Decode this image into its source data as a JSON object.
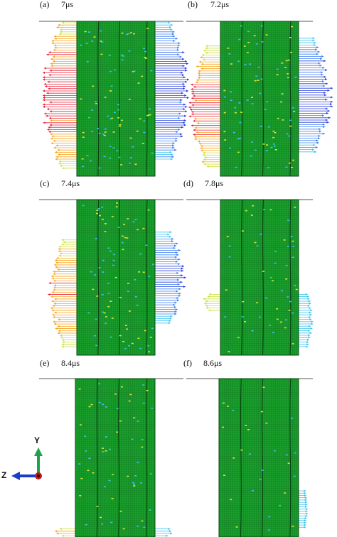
{
  "panels": [
    {
      "id": "a",
      "label": "(a)",
      "time": "7μs",
      "left_spread": 1.0,
      "right_spread": 1.0,
      "left_band": [
        0.0,
        0.95
      ],
      "right_band": [
        0.0,
        0.9
      ]
    },
    {
      "id": "b",
      "label": "(b)",
      "time": "7.2μs",
      "left_spread": 0.85,
      "right_spread": 0.95,
      "left_band": [
        0.15,
        0.95
      ],
      "right_band": [
        0.1,
        0.85
      ]
    },
    {
      "id": "c",
      "label": "(c)",
      "time": "7.4μs",
      "left_spread": 0.75,
      "right_spread": 0.85,
      "left_band": [
        0.25,
        0.95
      ],
      "right_band": [
        0.2,
        0.8
      ]
    },
    {
      "id": "d",
      "label": "(d)",
      "time": "7.8μs",
      "left_spread": 0.45,
      "right_spread": 0.3,
      "left_band": [
        0.6,
        0.72
      ],
      "right_band": [
        0.6,
        0.95
      ]
    },
    {
      "id": "e",
      "label": "(e)",
      "time": "8.4μs",
      "left_spread": 0.55,
      "right_spread": 0.5,
      "left_band": [
        0.94,
        1.0
      ],
      "right_band": [
        0.94,
        1.0
      ]
    },
    {
      "id": "f",
      "label": "(f)",
      "time": "8.6μs",
      "left_spread": 0.0,
      "right_spread": 0.12,
      "left_band": [
        0.0,
        0.0
      ],
      "right_band": [
        0.7,
        0.95
      ]
    }
  ],
  "axes": {
    "y_label": "Y",
    "z_label": "Z"
  },
  "colors": {
    "mesh_green": "#1a9e2c",
    "mesh_line": "#0b5a17",
    "hot": "#e8233a",
    "warm": "#f7a21b",
    "mid": "#c8e03a",
    "cool": "#39c3ee",
    "cold": "#2a3fd8",
    "y_arrow": "#1fa34a",
    "z_arrow": "#1a3fc7",
    "origin": "#c01616"
  }
}
